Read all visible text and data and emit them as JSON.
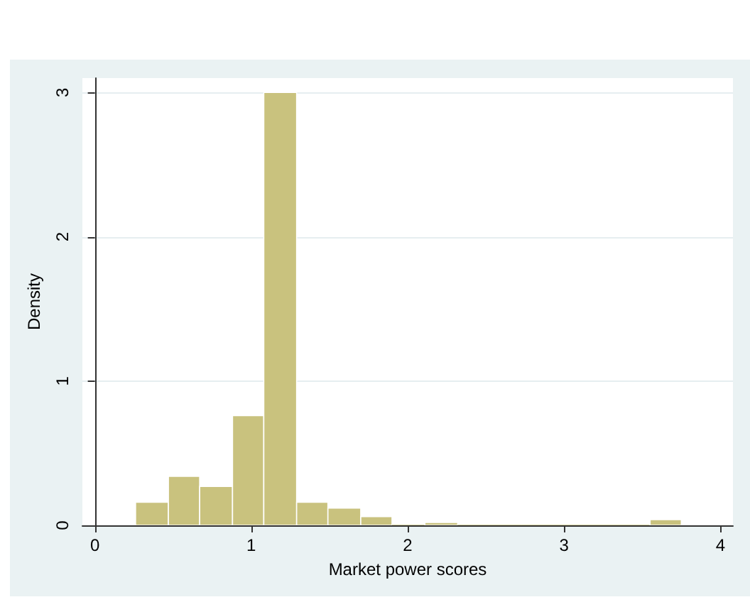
{
  "chart_data": {
    "type": "histogram",
    "xlabel": "Market power scores",
    "ylabel": "Density",
    "bins": [
      0.26,
      0.47,
      0.67,
      0.88,
      1.08,
      1.29,
      1.49,
      1.7,
      1.9,
      2.11,
      2.32,
      2.52,
      2.73,
      2.93,
      3.14,
      3.34,
      3.55,
      3.75
    ],
    "values": [
      0.16,
      0.34,
      0.27,
      0.76,
      3.0,
      0.16,
      0.12,
      0.06,
      0,
      0.02,
      0,
      0,
      0,
      0,
      0,
      0,
      0.04
    ],
    "color": "#c9c27e",
    "xlim": [
      -0.08,
      4.08
    ],
    "xticks": [
      0,
      1,
      2,
      3,
      4
    ],
    "ylim": [
      0,
      3.1
    ],
    "yticks": [
      0,
      1,
      2,
      3
    ],
    "grid": "y"
  }
}
